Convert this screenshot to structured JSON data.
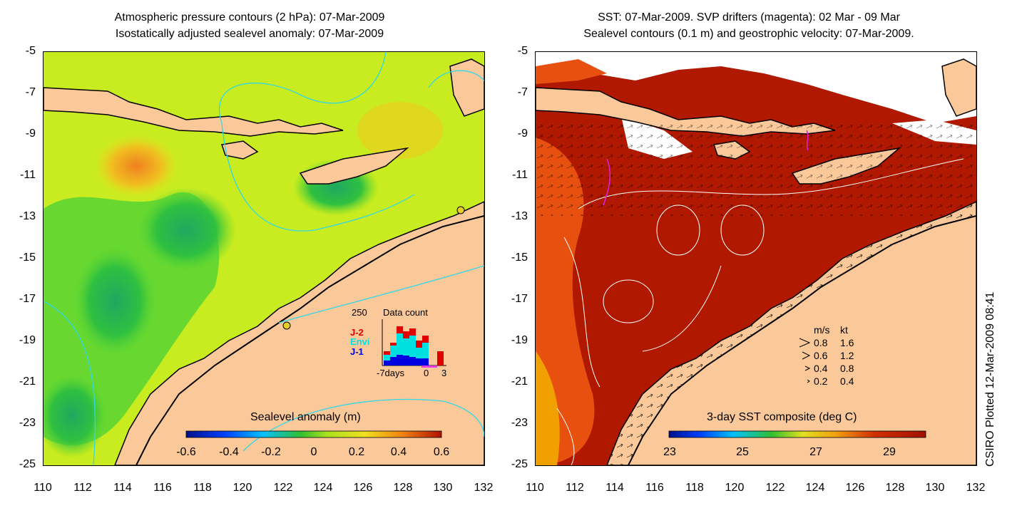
{
  "left_panel": {
    "title_line1": "Atmospheric pressure contours (2 hPa): 07-Mar-2009",
    "title_line2": "Isostatically adjusted sealevel anomaly: 07-Mar-2009",
    "colorbar_label": "Sealevel anomaly (m)",
    "colorbar_ticks": [
      "-0.6",
      "-0.4",
      "-0.2",
      "0",
      "0.2",
      "0.4",
      "0.6"
    ],
    "inset": {
      "max_label": "250",
      "title": "Data count",
      "legend": [
        {
          "label": "J-2",
          "color": "#e00000"
        },
        {
          "label": "Envi",
          "color": "#00e0e0"
        },
        {
          "label": "J-1",
          "color": "#0000e0"
        }
      ],
      "x_ticks": [
        "-7days",
        "0",
        "3"
      ]
    }
  },
  "right_panel": {
    "title_line1": "SST: 07-Mar-2009. SVP drifters (magenta): 02 Mar - 09 Mar",
    "title_line2": "Sealevel contours (0.1 m) and geostrophic velocity: 07-Mar-2009.",
    "colorbar_label": "3-day SST composite (deg C)",
    "colorbar_ticks": [
      "23",
      "25",
      "27",
      "29"
    ],
    "velocity_key": {
      "header_ms": "m/s",
      "header_kt": "kt",
      "rows": [
        {
          "ms": "0.8",
          "kt": "1.6"
        },
        {
          "ms": "0.6",
          "kt": "1.2"
        },
        {
          "ms": "0.4",
          "kt": "0.8"
        },
        {
          "ms": "0.2",
          "kt": "0.4"
        }
      ]
    }
  },
  "axes": {
    "y_ticks": [
      "-5",
      "-7",
      "-9",
      "-11",
      "-13",
      "-15",
      "-17",
      "-19",
      "-21",
      "-23",
      "-25"
    ],
    "x_ticks": [
      "110",
      "112",
      "114",
      "116",
      "118",
      "120",
      "122",
      "124",
      "126",
      "128",
      "130",
      "132"
    ],
    "lon_range": [
      110,
      132
    ],
    "lat_range": [
      -25,
      -5
    ]
  },
  "credit": "CSIRO Plotted 12-Mar-2009 08:41",
  "colors": {
    "land": "#fbc89a",
    "sst_warm": "#b01800",
    "sla_base": "#c8ec20",
    "contour_cyan": "#30d8e8"
  }
}
